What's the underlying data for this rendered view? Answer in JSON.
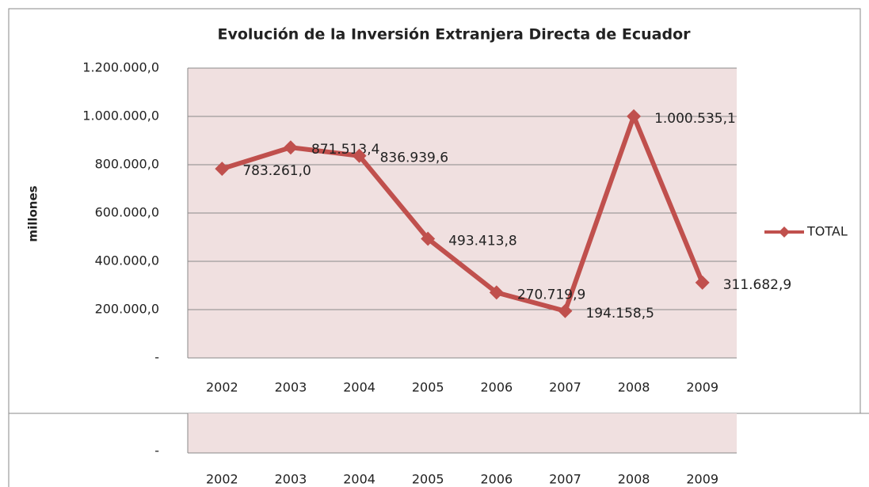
{
  "chart_data": {
    "type": "line",
    "title": "Evolución de la Inversión Extranjera Directa de Ecuador",
    "y_label": "millones",
    "categories": [
      "2002",
      "2003",
      "2004",
      "2005",
      "2006",
      "2007",
      "2008",
      "2009"
    ],
    "series": [
      {
        "name": "TOTAL",
        "color": "#c0504d",
        "values": [
          783261.0,
          871513.4,
          836939.6,
          493413.8,
          270719.9,
          194158.5,
          1000535.1,
          311682.9
        ],
        "value_labels": [
          "783.261,0",
          "871.513,4",
          "836.939,6",
          "493.413,8",
          "270.719,9",
          "194.158,5",
          "1.000.535,1",
          "311.682,9"
        ]
      }
    ],
    "ylim": [
      0,
      1200000
    ],
    "yticks": [
      {
        "value": 0,
        "label": "-"
      },
      {
        "value": 200000,
        "label": "200.000,0"
      },
      {
        "value": 400000,
        "label": "400.000,0"
      },
      {
        "value": 600000,
        "label": "600.000,0"
      },
      {
        "value": 800000,
        "label": "800.000,0"
      },
      {
        "value": 1000000,
        "label": "1.000.000,0"
      },
      {
        "value": 1200000,
        "label": "1.200.000,0"
      }
    ],
    "grid": true,
    "legend": "right"
  }
}
